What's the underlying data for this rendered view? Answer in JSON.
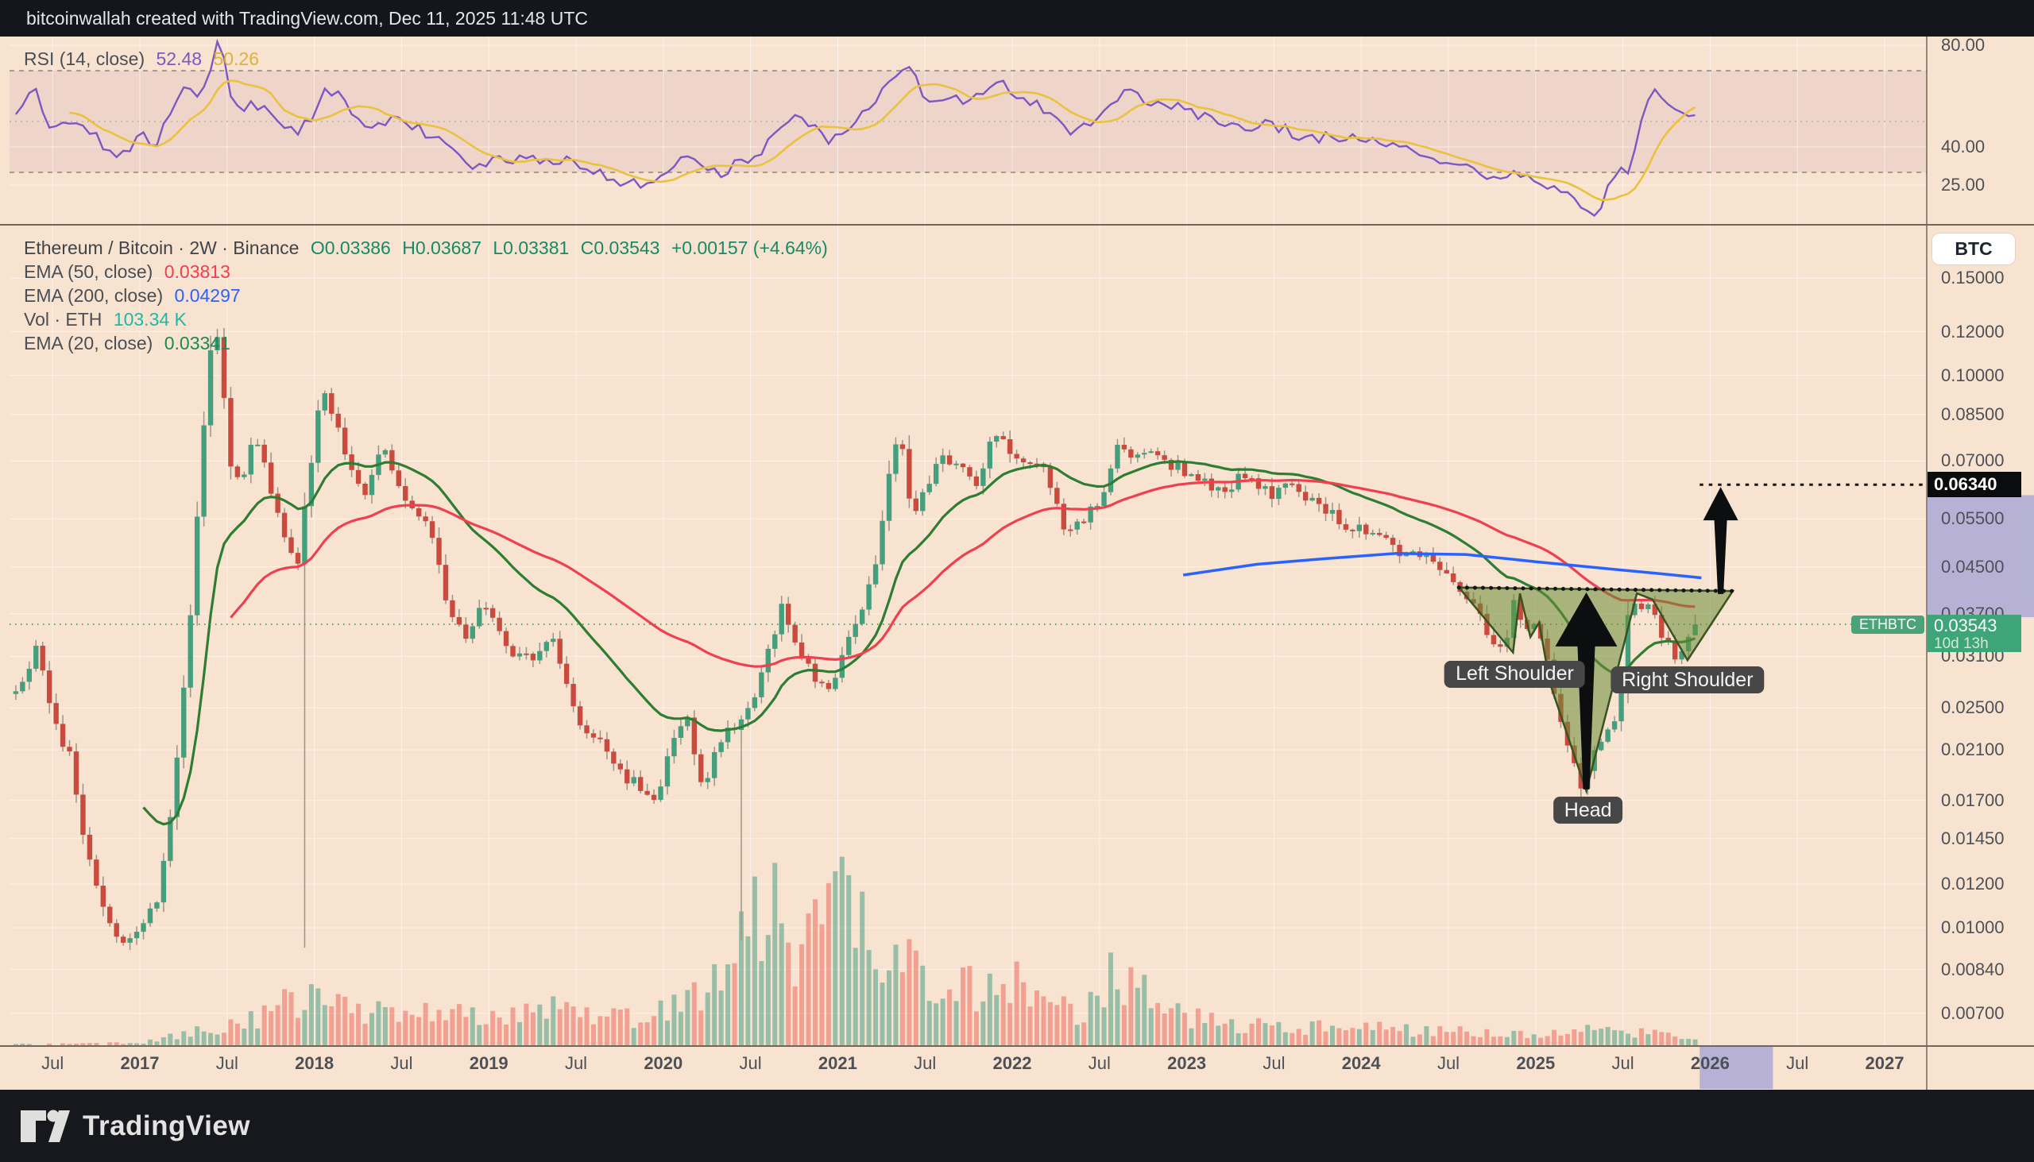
{
  "header": {
    "attribution": "bitcoinwallah created with TradingView.com, Dec 11, 2025 11:48 UTC"
  },
  "rsi": {
    "legend": {
      "label": "RSI (14, close)",
      "value_rsi": "52.48",
      "value_ma": "50.26"
    },
    "ticks": [
      {
        "label": "80.00",
        "value": 80
      },
      {
        "label": "40.00",
        "value": 40
      },
      {
        "label": "25.00",
        "value": 25
      }
    ],
    "bands": {
      "upper": 70,
      "middle": 50,
      "lower": 30
    }
  },
  "main": {
    "legend": {
      "title": "Ethereum / Bitcoin · 2W · Binance",
      "ohlc": {
        "open": "O0.03386",
        "high": "H0.03687",
        "low": "L0.03381",
        "close": "C0.03543",
        "change": "+0.00157 (+4.64%)"
      },
      "ema50": {
        "label": "EMA (50, close)",
        "value": "0.03813"
      },
      "ema200": {
        "label": "EMA (200, close)",
        "value": "0.04297"
      },
      "vol": {
        "label": "Vol · ETH",
        "value": "103.34 K"
      },
      "ema20": {
        "label": "EMA (20, close)",
        "value": "0.03341"
      }
    },
    "badges": {
      "currency": "BTC",
      "target_price": "0.06340",
      "last_price": "0.03543",
      "countdown": "10d 13h",
      "symbol": "ETHBTC"
    }
  },
  "price_axis": {
    "ticks": [
      [
        "0.15000",
        0.15
      ],
      [
        "0.12000",
        0.12
      ],
      [
        "0.10000",
        0.1
      ],
      [
        "0.08500",
        0.085
      ],
      [
        "0.07000",
        0.07
      ],
      [
        "0.05500",
        0.055
      ],
      [
        "0.04500",
        0.045
      ],
      [
        "0.03700",
        0.037
      ],
      [
        "0.03100",
        0.031
      ],
      [
        "0.02500",
        0.025
      ],
      [
        "0.02100",
        0.021
      ],
      [
        "0.01700",
        0.017
      ],
      [
        "0.01450",
        0.0145
      ],
      [
        "0.01200",
        0.012
      ],
      [
        "0.01000",
        0.01
      ],
      [
        "0.00840",
        0.0084
      ],
      [
        "0.00700",
        0.007
      ]
    ]
  },
  "time_axis": {
    "ticks": [
      [
        "Jul",
        2016.5,
        0
      ],
      [
        "2017",
        2017,
        1
      ],
      [
        "Jul",
        2017.5,
        0
      ],
      [
        "2018",
        2018,
        1
      ],
      [
        "Jul",
        2018.5,
        0
      ],
      [
        "2019",
        2019,
        1
      ],
      [
        "Jul",
        2019.5,
        0
      ],
      [
        "2020",
        2020,
        1
      ],
      [
        "Jul",
        2020.5,
        0
      ],
      [
        "2021",
        2021,
        1
      ],
      [
        "Jul",
        2021.5,
        0
      ],
      [
        "2022",
        2022,
        1
      ],
      [
        "Jul",
        2022.5,
        0
      ],
      [
        "2023",
        2023,
        1
      ],
      [
        "Jul",
        2023.5,
        0
      ],
      [
        "2024",
        2024,
        1
      ],
      [
        "Jul",
        2024.5,
        0
      ],
      [
        "2025",
        2025,
        1
      ],
      [
        "Jul",
        2025.5,
        0
      ],
      [
        "2026",
        2026,
        1
      ],
      [
        "Jul",
        2026.5,
        0
      ],
      [
        "2027",
        2027,
        1
      ]
    ]
  },
  "footer": {
    "brand": "TradingView"
  },
  "colors": {
    "candle_up": "#459f7d",
    "candle_down": "#ca4a3e",
    "wick": "#9b948a",
    "ema20": "#2e7d32",
    "ema50": "#ef4050",
    "ema200": "#2962ff",
    "rsi": "#7e57c2",
    "rsi_ma": "#e9c23f",
    "vol_up": "rgba(74,160,133,0.55)",
    "vol_down": "rgba(238,115,104,0.60)",
    "bg": "#f8e3d1",
    "grid": "rgba(255,255,255,0.55)",
    "separator": "#6f675c",
    "band_fill": "rgba(170,90,150,0.10)",
    "band_line": "#8d867d",
    "band_mid": "#b9b0a5",
    "pattern_fill": "rgba(106,141,52,0.55)",
    "pattern_stroke": "#39521f",
    "neckline": "#15161a",
    "price_line": "#3f9b63",
    "highlight": "rgba(147,151,216,0.65)",
    "arrow": "#0d0e10"
  },
  "chart_data": {
    "type": "candlestick",
    "title": "Ethereum / Bitcoin · 2W · Binance",
    "symbol": "ETHBTC",
    "interval": "2W",
    "exchange": "Binance",
    "price_scale": "log",
    "x_domain": [
      2016.27,
      2027.15
    ],
    "last_ohlc": {
      "open": 0.03386,
      "high": 0.03687,
      "low": 0.03381,
      "close": 0.03543,
      "change": 0.00157,
      "change_pct": 4.64
    },
    "indicators": {
      "ema20": 0.03341,
      "ema50": 0.03813,
      "ema200": 0.04297,
      "rsi14": 52.48,
      "rsi_ma": 50.26,
      "volume_eth_k": 103.34
    },
    "bar_interval_years": 0.0385,
    "first_bar_year": 2016.27,
    "price_path": [
      [
        2016.27,
        0.0265
      ],
      [
        2016.36,
        0.0285
      ],
      [
        2016.44,
        0.0325
      ],
      [
        2016.52,
        0.0235
      ],
      [
        2016.62,
        0.0205
      ],
      [
        2016.72,
        0.0135
      ],
      [
        2016.82,
        0.0105
      ],
      [
        2016.92,
        0.0092
      ],
      [
        2017.02,
        0.0102
      ],
      [
        2017.12,
        0.011
      ],
      [
        2017.2,
        0.016
      ],
      [
        2017.3,
        0.034
      ],
      [
        2017.38,
        0.075
      ],
      [
        2017.44,
        0.13
      ],
      [
        2017.48,
        0.105
      ],
      [
        2017.54,
        0.07
      ],
      [
        2017.6,
        0.063
      ],
      [
        2017.68,
        0.078
      ],
      [
        2017.76,
        0.064
      ],
      [
        2017.84,
        0.052
      ],
      [
        2017.92,
        0.045
      ],
      [
        2018.0,
        0.07
      ],
      [
        2018.06,
        0.098
      ],
      [
        2018.14,
        0.082
      ],
      [
        2018.22,
        0.07
      ],
      [
        2018.3,
        0.059
      ],
      [
        2018.4,
        0.076
      ],
      [
        2018.48,
        0.066
      ],
      [
        2018.58,
        0.057
      ],
      [
        2018.68,
        0.054
      ],
      [
        2018.78,
        0.039
      ],
      [
        2018.88,
        0.033
      ],
      [
        2018.98,
        0.039
      ],
      [
        2019.08,
        0.034
      ],
      [
        2019.18,
        0.031
      ],
      [
        2019.28,
        0.0305
      ],
      [
        2019.38,
        0.0335
      ],
      [
        2019.48,
        0.026
      ],
      [
        2019.58,
        0.0225
      ],
      [
        2019.68,
        0.0215
      ],
      [
        2019.78,
        0.019
      ],
      [
        2019.88,
        0.018
      ],
      [
        2019.98,
        0.0165
      ],
      [
        2020.08,
        0.0225
      ],
      [
        2020.16,
        0.024
      ],
      [
        2020.24,
        0.018
      ],
      [
        2020.34,
        0.0215
      ],
      [
        2020.44,
        0.0235
      ],
      [
        2020.54,
        0.0265
      ],
      [
        2020.62,
        0.032
      ],
      [
        2020.7,
        0.038
      ],
      [
        2020.78,
        0.033
      ],
      [
        2020.88,
        0.0288
      ],
      [
        2020.96,
        0.0262
      ],
      [
        2021.04,
        0.031
      ],
      [
        2021.14,
        0.036
      ],
      [
        2021.24,
        0.046
      ],
      [
        2021.32,
        0.07
      ],
      [
        2021.38,
        0.078
      ],
      [
        2021.44,
        0.056
      ],
      [
        2021.52,
        0.062
      ],
      [
        2021.62,
        0.071
      ],
      [
        2021.72,
        0.068
      ],
      [
        2021.82,
        0.064
      ],
      [
        2021.92,
        0.079
      ],
      [
        2022.02,
        0.073
      ],
      [
        2022.12,
        0.069
      ],
      [
        2022.22,
        0.066
      ],
      [
        2022.32,
        0.053
      ],
      [
        2022.42,
        0.055
      ],
      [
        2022.52,
        0.059
      ],
      [
        2022.62,
        0.076
      ],
      [
        2022.72,
        0.07
      ],
      [
        2022.82,
        0.072
      ],
      [
        2022.92,
        0.069
      ],
      [
        2023.02,
        0.067
      ],
      [
        2023.12,
        0.064
      ],
      [
        2023.22,
        0.062
      ],
      [
        2023.32,
        0.065
      ],
      [
        2023.42,
        0.063
      ],
      [
        2023.52,
        0.061
      ],
      [
        2023.62,
        0.063
      ],
      [
        2023.72,
        0.059
      ],
      [
        2023.82,
        0.057
      ],
      [
        2023.92,
        0.054
      ],
      [
        2024.02,
        0.053
      ],
      [
        2024.12,
        0.051
      ],
      [
        2024.22,
        0.048
      ],
      [
        2024.32,
        0.049
      ],
      [
        2024.42,
        0.046
      ],
      [
        2024.52,
        0.043
      ],
      [
        2024.6,
        0.0405
      ],
      [
        2024.68,
        0.037
      ],
      [
        2024.76,
        0.034
      ],
      [
        2024.84,
        0.0315
      ],
      [
        2024.9,
        0.04
      ],
      [
        2024.96,
        0.0345
      ],
      [
        2025.02,
        0.036
      ],
      [
        2025.1,
        0.029
      ],
      [
        2025.18,
        0.023
      ],
      [
        2025.28,
        0.0178
      ],
      [
        2025.36,
        0.021
      ],
      [
        2025.44,
        0.0235
      ],
      [
        2025.5,
        0.0245
      ],
      [
        2025.56,
        0.04
      ],
      [
        2025.62,
        0.0385
      ],
      [
        2025.68,
        0.0375
      ],
      [
        2025.74,
        0.034
      ],
      [
        2025.82,
        0.0307
      ],
      [
        2025.88,
        0.033
      ],
      [
        2025.94,
        0.0354
      ]
    ],
    "anomaly_wicks": [
      {
        "x": 2017.92,
        "low": 0.0092
      },
      {
        "x": 2020.42,
        "low": 0.0095
      }
    ],
    "ema200_path": [
      [
        2022.98,
        0.0435
      ],
      [
        2023.4,
        0.0455
      ],
      [
        2023.8,
        0.0466
      ],
      [
        2024.2,
        0.0476
      ],
      [
        2024.6,
        0.0474
      ],
      [
        2025.0,
        0.046
      ],
      [
        2025.4,
        0.0447
      ],
      [
        2025.7,
        0.0438
      ],
      [
        2025.95,
        0.043
      ]
    ],
    "rsi_path": [
      [
        2016.28,
        52
      ],
      [
        2016.38,
        63
      ],
      [
        2016.44,
        50
      ],
      [
        2016.52,
        49
      ],
      [
        2016.6,
        51
      ],
      [
        2016.68,
        47
      ],
      [
        2016.76,
        42
      ],
      [
        2016.84,
        36
      ],
      [
        2016.92,
        40
      ],
      [
        2017.0,
        44
      ],
      [
        2017.08,
        40
      ],
      [
        2017.16,
        55
      ],
      [
        2017.24,
        65
      ],
      [
        2017.3,
        58
      ],
      [
        2017.38,
        70
      ],
      [
        2017.44,
        83
      ],
      [
        2017.5,
        62
      ],
      [
        2017.56,
        54
      ],
      [
        2017.64,
        58
      ],
      [
        2017.72,
        53
      ],
      [
        2017.8,
        48
      ],
      [
        2017.88,
        46
      ],
      [
        2017.96,
        52
      ],
      [
        2018.04,
        64
      ],
      [
        2018.12,
        60
      ],
      [
        2018.22,
        53
      ],
      [
        2018.32,
        47
      ],
      [
        2018.42,
        52
      ],
      [
        2018.52,
        49
      ],
      [
        2018.62,
        46
      ],
      [
        2018.72,
        43
      ],
      [
        2018.82,
        35
      ],
      [
        2018.92,
        31
      ],
      [
        2019.02,
        38
      ],
      [
        2019.12,
        34
      ],
      [
        2019.22,
        36
      ],
      [
        2019.32,
        33
      ],
      [
        2019.42,
        36
      ],
      [
        2019.52,
        31
      ],
      [
        2019.62,
        29
      ],
      [
        2019.72,
        27
      ],
      [
        2019.82,
        25
      ],
      [
        2019.92,
        24
      ],
      [
        2020.02,
        31
      ],
      [
        2020.12,
        36
      ],
      [
        2020.22,
        32
      ],
      [
        2020.32,
        29
      ],
      [
        2020.42,
        34
      ],
      [
        2020.52,
        38
      ],
      [
        2020.62,
        44
      ],
      [
        2020.7,
        50
      ],
      [
        2020.78,
        53
      ],
      [
        2020.86,
        46
      ],
      [
        2020.94,
        43
      ],
      [
        2021.02,
        47
      ],
      [
        2021.12,
        53
      ],
      [
        2021.22,
        61
      ],
      [
        2021.32,
        69
      ],
      [
        2021.4,
        72
      ],
      [
        2021.46,
        59
      ],
      [
        2021.54,
        56
      ],
      [
        2021.62,
        60
      ],
      [
        2021.72,
        58
      ],
      [
        2021.82,
        61
      ],
      [
        2021.92,
        65
      ],
      [
        2022.02,
        59
      ],
      [
        2022.12,
        57
      ],
      [
        2022.22,
        51
      ],
      [
        2022.32,
        47
      ],
      [
        2022.42,
        50
      ],
      [
        2022.52,
        57
      ],
      [
        2022.62,
        62
      ],
      [
        2022.72,
        59
      ],
      [
        2022.82,
        57
      ],
      [
        2022.92,
        55
      ],
      [
        2023.02,
        54
      ],
      [
        2023.12,
        51
      ],
      [
        2023.22,
        49
      ],
      [
        2023.32,
        48
      ],
      [
        2023.42,
        50
      ],
      [
        2023.52,
        47
      ],
      [
        2023.62,
        45
      ],
      [
        2023.72,
        44
      ],
      [
        2023.82,
        45
      ],
      [
        2023.92,
        43
      ],
      [
        2024.02,
        42
      ],
      [
        2024.12,
        40
      ],
      [
        2024.22,
        41
      ],
      [
        2024.32,
        38
      ],
      [
        2024.42,
        36
      ],
      [
        2024.52,
        34
      ],
      [
        2024.62,
        31
      ],
      [
        2024.72,
        27
      ],
      [
        2024.82,
        26
      ],
      [
        2024.9,
        31
      ],
      [
        2024.98,
        28
      ],
      [
        2025.08,
        25
      ],
      [
        2025.18,
        20
      ],
      [
        2025.28,
        13
      ],
      [
        2025.36,
        17
      ],
      [
        2025.44,
        30
      ],
      [
        2025.52,
        29
      ],
      [
        2025.58,
        49
      ],
      [
        2025.64,
        60
      ],
      [
        2025.7,
        62
      ],
      [
        2025.76,
        57
      ],
      [
        2025.82,
        53
      ],
      [
        2025.88,
        49
      ],
      [
        2025.94,
        52.5
      ]
    ],
    "volume_envelope": [
      [
        2016.3,
        0.005
      ],
      [
        2017.0,
        0.01
      ],
      [
        2017.3,
        0.06
      ],
      [
        2017.6,
        0.1
      ],
      [
        2018.0,
        0.22
      ],
      [
        2018.2,
        0.12
      ],
      [
        2018.5,
        0.16
      ],
      [
        2018.8,
        0.12
      ],
      [
        2019.0,
        0.13
      ],
      [
        2019.3,
        0.16
      ],
      [
        2019.6,
        0.11
      ],
      [
        2019.9,
        0.12
      ],
      [
        2020.1,
        0.16
      ],
      [
        2020.4,
        0.42
      ],
      [
        2020.55,
        0.65
      ],
      [
        2020.7,
        0.4
      ],
      [
        2020.9,
        0.45
      ],
      [
        2021.05,
        0.62
      ],
      [
        2021.2,
        0.45
      ],
      [
        2021.4,
        0.35
      ],
      [
        2021.6,
        0.25
      ],
      [
        2021.8,
        0.22
      ],
      [
        2022.0,
        0.25
      ],
      [
        2022.2,
        0.16
      ],
      [
        2022.4,
        0.14
      ],
      [
        2022.55,
        0.3
      ],
      [
        2022.75,
        0.2
      ],
      [
        2022.95,
        0.12
      ],
      [
        2023.2,
        0.09
      ],
      [
        2023.5,
        0.08
      ],
      [
        2023.8,
        0.07
      ],
      [
        2024.1,
        0.07
      ],
      [
        2024.4,
        0.06
      ],
      [
        2024.7,
        0.06
      ],
      [
        2025.0,
        0.05
      ],
      [
        2025.3,
        0.06
      ],
      [
        2025.6,
        0.05
      ],
      [
        2025.9,
        0.03
      ]
    ],
    "annotation": {
      "pattern": "inverse head and shoulders",
      "neckline_price": 0.0405,
      "neckline_span": [
        2024.56,
        2026.13
      ],
      "target_price": 0.0634,
      "left_shoulder_low": 0.0315,
      "head_low": 0.0178,
      "right_shoulder_low": 0.0305,
      "polygon": [
        [
          2024.56,
          0.0413
        ],
        [
          2024.87,
          0.0315
        ],
        [
          2024.91,
          0.0403
        ],
        [
          2024.97,
          0.0336
        ],
        [
          2025.02,
          0.0357
        ],
        [
          2025.08,
          0.0278
        ],
        [
          2025.29,
          0.0177
        ],
        [
          2025.58,
          0.0403
        ],
        [
          2025.67,
          0.0393
        ],
        [
          2025.87,
          0.0305
        ],
        [
          2026.13,
          0.0407
        ]
      ],
      "arrows": [
        {
          "x": 2025.29,
          "from_price": 0.0178,
          "to_price": 0.0402,
          "size": "large"
        },
        {
          "x": 2026.06,
          "from_price": 0.0402,
          "to_price": 0.0628,
          "size": "small"
        }
      ],
      "labels": [
        {
          "text": "Left Shoulder",
          "x": 2024.88,
          "price": 0.0288
        },
        {
          "text": "Head",
          "x": 2025.3,
          "price": 0.0163
        },
        {
          "text": "Right Shoulder",
          "x": 2025.87,
          "price": 0.0281
        }
      ],
      "target_line_price": 0.0634,
      "highlight_time_span": [
        2025.94,
        2026.36
      ],
      "highlight_price_span": [
        0.0365,
        0.0607
      ]
    }
  }
}
